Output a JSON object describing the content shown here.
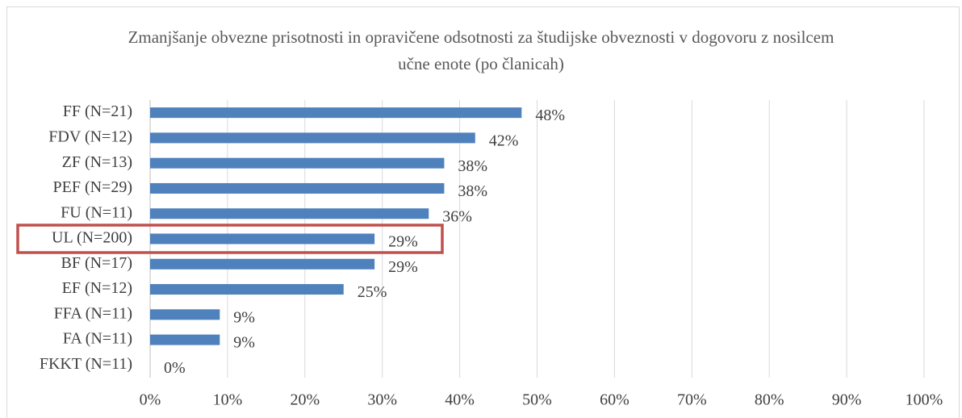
{
  "chart_data": {
    "type": "bar",
    "orientation": "horizontal",
    "title": "Zmanjšanje obvezne prisotnosti in opravičene odsotnosti za študijske obveznosti v dogovoru z nosilcem učne enote (po članicah)",
    "categories": [
      "FF (N=21)",
      "FDV (N=12)",
      "ZF (N=13)",
      "PEF (N=29)",
      "FU (N=11)",
      "UL (N=200)",
      "BF (N=17)",
      "EF (N=12)",
      "FFA (N=11)",
      "FA (N=11)",
      "FKKT (N=11)"
    ],
    "values": [
      48,
      42,
      38,
      38,
      36,
      29,
      29,
      25,
      9,
      9,
      0
    ],
    "value_labels": [
      "48%",
      "42%",
      "38%",
      "38%",
      "36%",
      "29%",
      "29%",
      "25%",
      "9%",
      "9%",
      "0%"
    ],
    "color": "#4f81bd",
    "xlim": [
      0,
      100
    ],
    "xticks": [
      {
        "value": 0,
        "label": "0%"
      },
      {
        "value": 10,
        "label": "10%"
      },
      {
        "value": 20,
        "label": "20%"
      },
      {
        "value": 30,
        "label": "30%"
      },
      {
        "value": 40,
        "label": "40%"
      },
      {
        "value": 50,
        "label": "50%"
      },
      {
        "value": 60,
        "label": "60%"
      },
      {
        "value": 70,
        "label": "70%"
      },
      {
        "value": 80,
        "label": "80%"
      },
      {
        "value": 90,
        "label": "90%"
      },
      {
        "value": 100,
        "label": "100%"
      }
    ],
    "grid": true
  }
}
